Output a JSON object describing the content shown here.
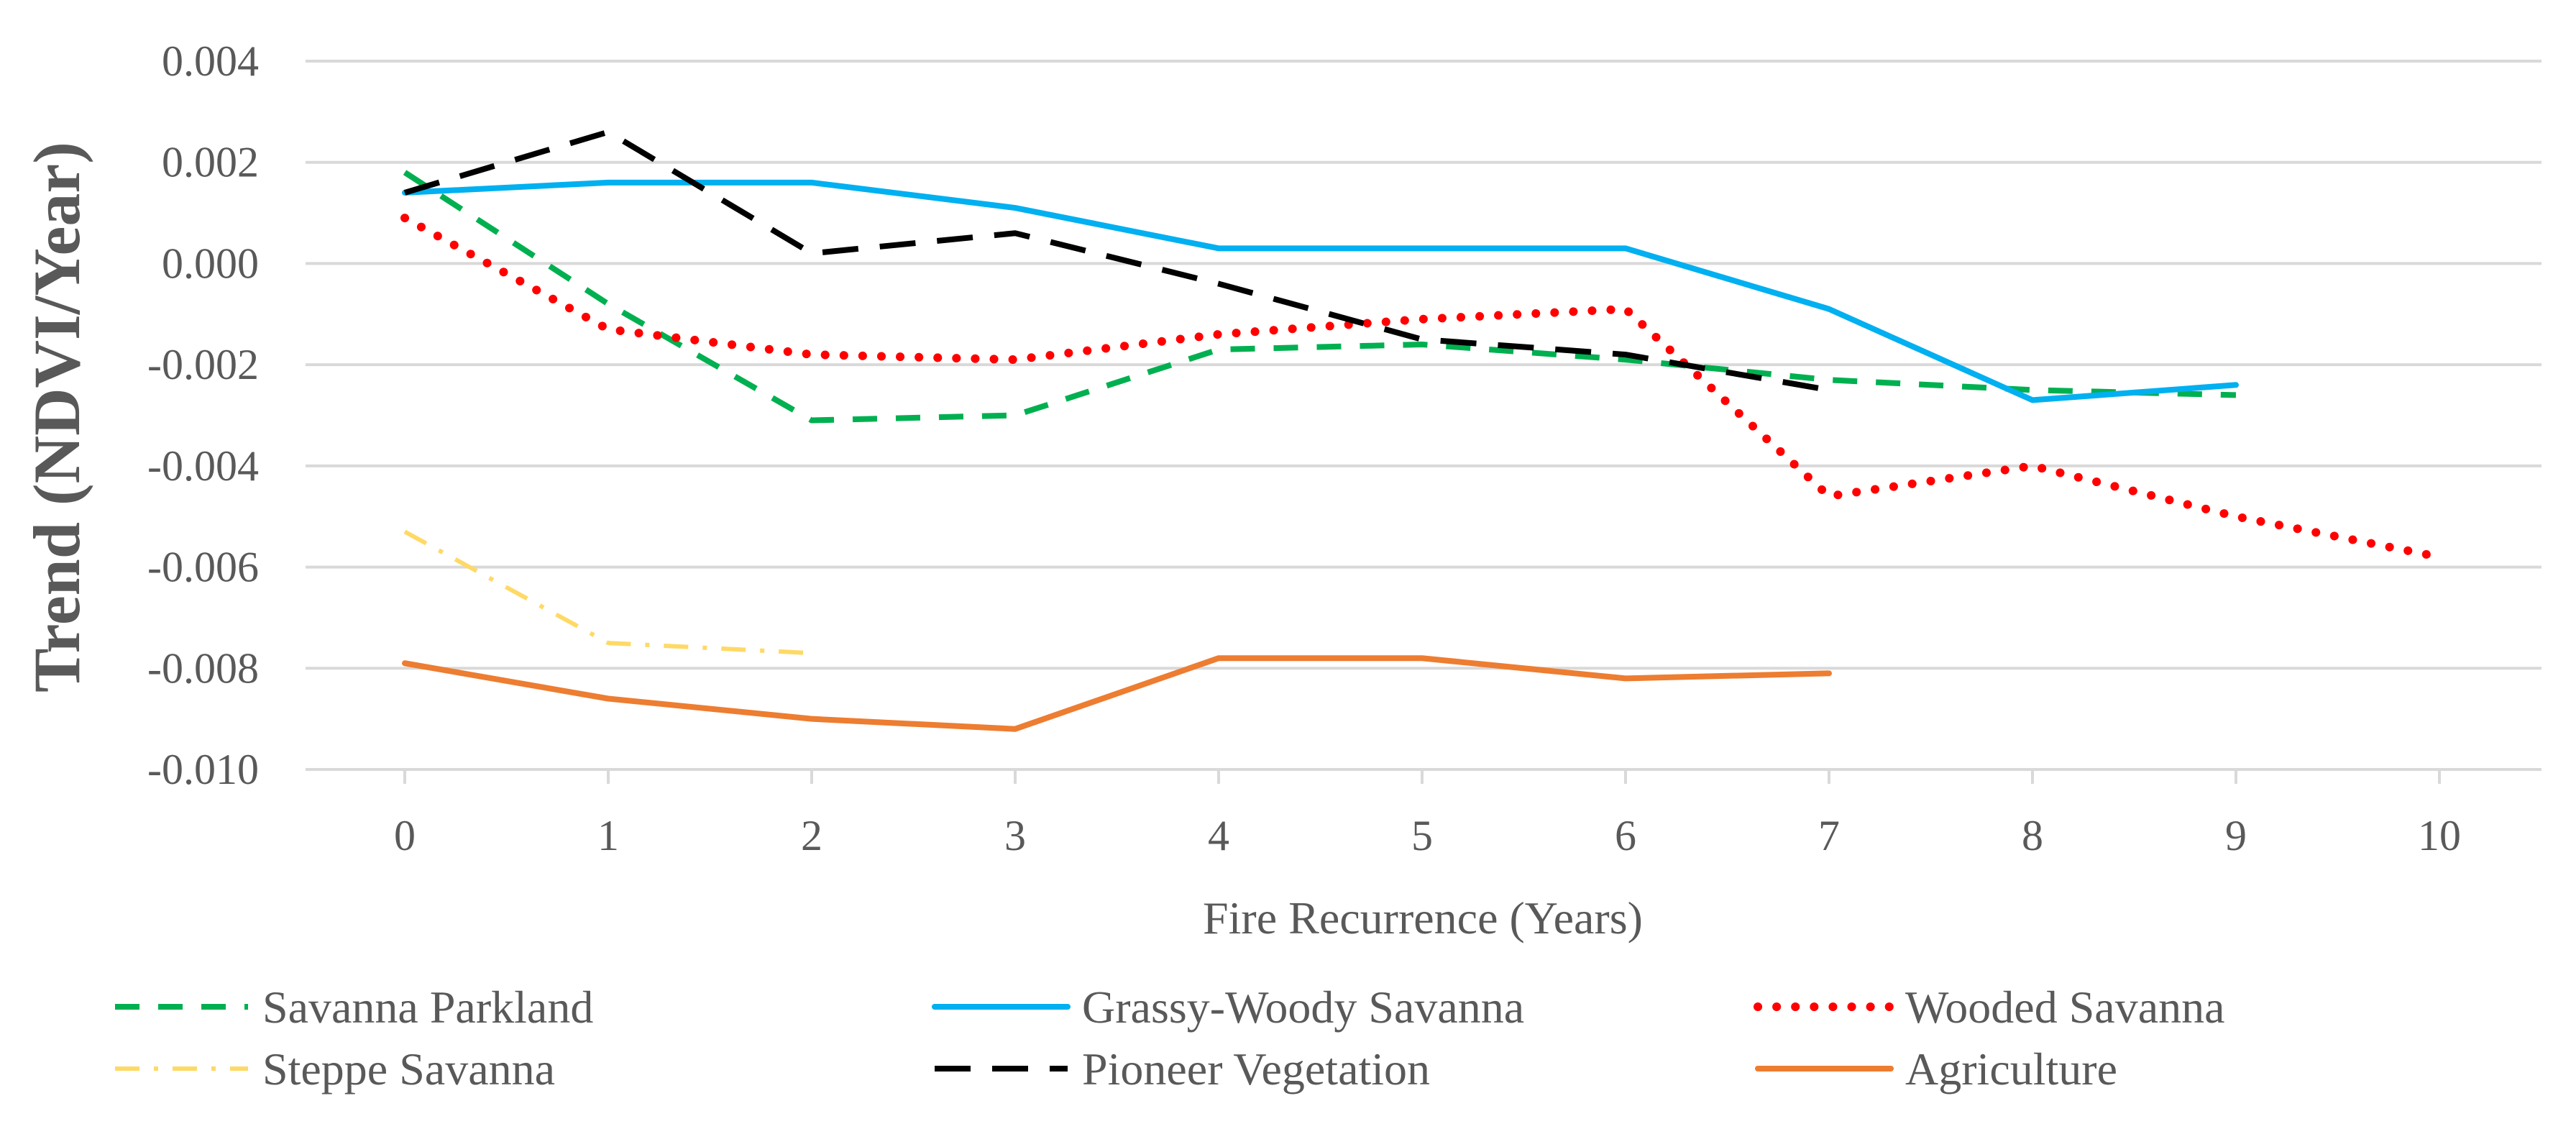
{
  "chart_data": {
    "type": "line",
    "title": "",
    "xlabel": "Fire Recurrence (Years)",
    "ylabel": "Trend (NDVI/Year)",
    "xlim": [
      0,
      10
    ],
    "ylim": [
      -0.01,
      0.004
    ],
    "x_ticks": [
      "0",
      "1",
      "2",
      "3",
      "4",
      "5",
      "6",
      "7",
      "8",
      "9",
      "10"
    ],
    "y_ticks": [
      "0.004",
      "0.002",
      "0.000",
      "-0.002",
      "-0.004",
      "-0.006",
      "-0.008",
      "-0.010"
    ],
    "y_tick_values": [
      0.004,
      0.002,
      0.0,
      -0.002,
      -0.004,
      -0.006,
      -0.008,
      -0.01
    ],
    "grid": true,
    "legend_position": "bottom",
    "series": [
      {
        "name": "Savanna Parkland",
        "color": "#00B050",
        "style": "dashed",
        "x": [
          0,
          1,
          2,
          3,
          4,
          5,
          6,
          7,
          8,
          9
        ],
        "values": [
          0.0018,
          -0.0008,
          -0.0031,
          -0.003,
          -0.0017,
          -0.0016,
          -0.0019,
          -0.0023,
          -0.0025,
          -0.0026
        ]
      },
      {
        "name": "Grassy-Woody Savanna",
        "color": "#00B0F0",
        "style": "solid",
        "x": [
          0,
          1,
          2,
          3,
          4,
          5,
          6,
          7,
          8,
          9
        ],
        "values": [
          0.0014,
          0.0016,
          0.0016,
          0.0011,
          0.0003,
          0.0003,
          0.0003,
          -0.0009,
          -0.0027,
          -0.0024
        ]
      },
      {
        "name": "Wooded Savanna",
        "color": "#FF0000",
        "style": "dotted",
        "x": [
          0,
          1,
          2,
          3,
          4,
          5,
          6,
          7,
          8,
          9,
          10
        ],
        "values": [
          0.0009,
          -0.0013,
          -0.0018,
          -0.0019,
          -0.0014,
          -0.0011,
          -0.0009,
          -0.0046,
          -0.004,
          -0.005,
          -0.0058
        ]
      },
      {
        "name": "Steppe Savanna",
        "color": "#FFD966",
        "style": "dashdot",
        "x": [
          0,
          1,
          2
        ],
        "values": [
          -0.0053,
          -0.0075,
          -0.0077
        ]
      },
      {
        "name": "Pioneer Vegetation",
        "color": "#000000",
        "style": "dashed-long",
        "x": [
          0,
          1,
          2,
          3,
          4,
          5,
          6,
          7
        ],
        "values": [
          0.0014,
          0.0026,
          0.0002,
          0.0006,
          -0.0004,
          -0.0015,
          -0.0018,
          -0.0025
        ]
      },
      {
        "name": "Agriculture",
        "color": "#ED7D31",
        "style": "solid",
        "x": [
          0,
          1,
          2,
          3,
          4,
          5,
          6,
          7
        ],
        "values": [
          -0.0079,
          -0.0086,
          -0.009,
          -0.0092,
          -0.0078,
          -0.0078,
          -0.0082,
          -0.0081
        ]
      }
    ]
  }
}
